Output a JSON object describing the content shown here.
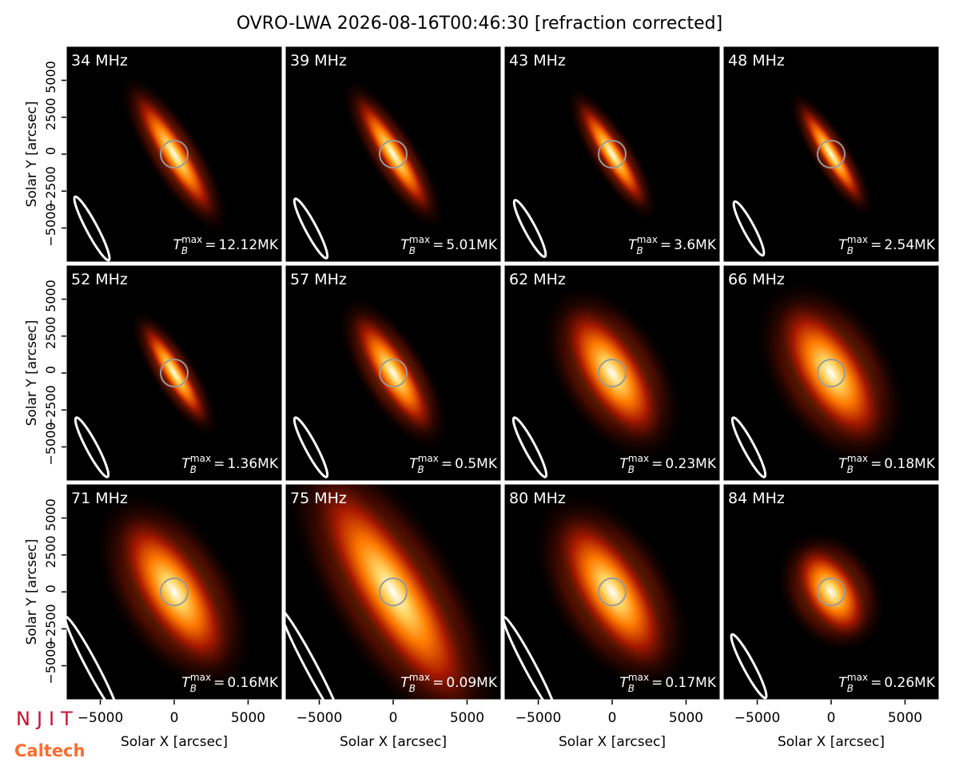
{
  "title": "OVRO-LWA 2026-08-16T00:46:30 [refraction corrected]",
  "axes": {
    "xlabel": "Solar X [arcsec]",
    "ylabel": "Solar Y [arcsec]",
    "xlim": [
      -7300,
      7300
    ],
    "ylim": [
      -7300,
      7300
    ],
    "xticks": [
      {
        "value": -5000,
        "label": "−5000"
      },
      0,
      5000
    ],
    "yticks": [
      {
        "value": -5000,
        "label": "−5000"
      },
      {
        "value": -2500,
        "label": "−2500"
      },
      0,
      2500,
      5000
    ]
  },
  "tmax_symbol": {
    "base": "T",
    "sub": "B",
    "sup": "max",
    "eq": "="
  },
  "panels": [
    {
      "frequency": "34 MHz",
      "tmax": "12.12MK"
    },
    {
      "frequency": "39 MHz",
      "tmax": "5.01MK"
    },
    {
      "frequency": "43 MHz",
      "tmax": "3.6MK"
    },
    {
      "frequency": "48 MHz",
      "tmax": "2.54MK"
    },
    {
      "frequency": "52 MHz",
      "tmax": "1.36MK"
    },
    {
      "frequency": "57 MHz",
      "tmax": "0.5MK"
    },
    {
      "frequency": "62 MHz",
      "tmax": "0.23MK"
    },
    {
      "frequency": "66 MHz",
      "tmax": "0.18MK"
    },
    {
      "frequency": "71 MHz",
      "tmax": "0.16MK"
    },
    {
      "frequency": "75 MHz",
      "tmax": "0.09MK"
    },
    {
      "frequency": "80 MHz",
      "tmax": "0.17MK"
    },
    {
      "frequency": "84 MHz",
      "tmax": "0.26MK"
    }
  ],
  "logos": {
    "njit": "NJIT",
    "caltech": "Caltech"
  }
}
